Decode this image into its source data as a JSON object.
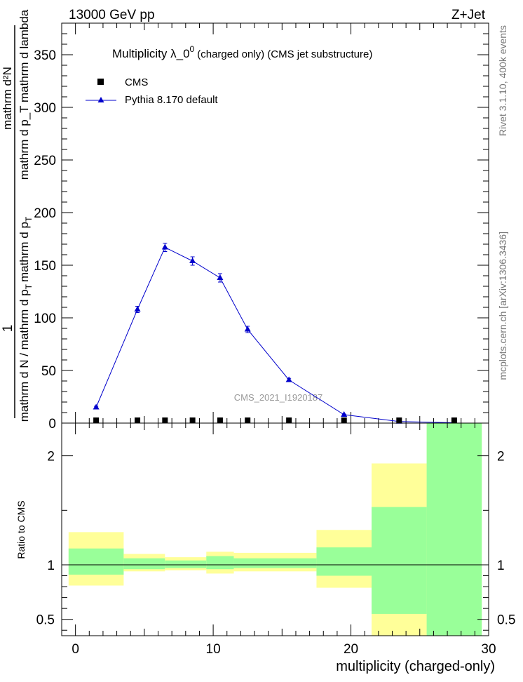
{
  "header": {
    "energy": "13000 GeV pp",
    "process": "Z+Jet"
  },
  "side_labels": {
    "rivet": "Rivet 3.1.10,  400k events",
    "mcplots": "mcplots.cern.ch [arXiv:1306.3436]"
  },
  "main_plot": {
    "title_main": "Multiplicity  λ_0",
    "title_sup": "0",
    "title_sub": "(charged only) (CMS jet substructure)",
    "watermark": "CMS_2021_I1920187",
    "ylabel_prefix": "1",
    "ylabel_denominator": "mathrm d N / mathrm d p_T mathrm d p_T",
    "ylabel_numerator": "mathrm d²N / mathrm d lambda",
    "ylabel_numerator_lines": [
      "mathrm d²N",
      "mathrm d p_T mathrm d lambda"
    ],
    "ylabel_denominator_lines": [
      "mathrm d N / mathrm d p",
      "T",
      "mathrm d p",
      "T"
    ]
  },
  "legend": {
    "entries": [
      {
        "label": "CMS",
        "color": "#000000",
        "marker": "square"
      },
      {
        "label": "Pythia 8.170 default",
        "color": "#0000cc",
        "marker": "triangle"
      }
    ]
  },
  "ratio_plot": {
    "ylabel": "Ratio to CMS",
    "xlabel": "multiplicity (charged-only)",
    "band_inner_color": "#99ff99",
    "band_outer_color": "#ffff99"
  },
  "chart_data": [
    {
      "type": "line",
      "title": "Multiplicity  λ_0^0 (charged only) (CMS jet substructure)",
      "xlim": [
        -1,
        30
      ],
      "ylim": [
        0,
        380
      ],
      "yticks": [
        0,
        50,
        100,
        150,
        200,
        250,
        300,
        350
      ],
      "series": [
        {
          "name": "Pythia 8.170 default",
          "color": "#0000cc",
          "x": [
            1.5,
            4.5,
            6.5,
            8.5,
            10.5,
            12.5,
            15.5,
            19.5,
            23.5,
            27.5
          ],
          "values": [
            15,
            108,
            167,
            154,
            138,
            89,
            41,
            8,
            1.5,
            0.3
          ],
          "errors": [
            1,
            3,
            4,
            4,
            4,
            3,
            1.5,
            0.5,
            0.2,
            0.1
          ]
        },
        {
          "name": "CMS",
          "color": "#000000",
          "x": [
            1.5,
            4.5,
            6.5,
            8.5,
            10.5,
            12.5,
            15.5,
            19.5,
            23.5,
            27.5
          ],
          "values": [
            0.8,
            0.8,
            1.0,
            1.0,
            0.8,
            0.6,
            0.5,
            0.4,
            0.3,
            0.4
          ]
        }
      ]
    },
    {
      "type": "area",
      "title": "Ratio to CMS",
      "xlabel": "multiplicity (charged-only)",
      "ylabel": "Ratio to CMS",
      "xlim": [
        -1,
        30
      ],
      "ylim": [
        0.35,
        2.3
      ],
      "xticks": [
        0,
        10,
        20,
        30
      ],
      "yticks": [
        0.5,
        1,
        2
      ],
      "reference_line": 1,
      "bins": [
        {
          "lo": -0.5,
          "hi": 3.5,
          "inner": [
            0.91,
            1.15
          ],
          "outer": [
            0.81,
            1.3
          ]
        },
        {
          "lo": 3.5,
          "hi": 6.5,
          "inner": [
            0.96,
            1.06
          ],
          "outer": [
            0.94,
            1.1
          ]
        },
        {
          "lo": 6.5,
          "hi": 9.5,
          "inner": [
            0.97,
            1.04
          ],
          "outer": [
            0.95,
            1.07
          ]
        },
        {
          "lo": 9.5,
          "hi": 11.5,
          "inner": [
            0.96,
            1.08
          ],
          "outer": [
            0.92,
            1.12
          ]
        },
        {
          "lo": 11.5,
          "hi": 17.5,
          "inner": [
            0.97,
            1.06
          ],
          "outer": [
            0.94,
            1.11
          ]
        },
        {
          "lo": 17.5,
          "hi": 21.5,
          "inner": [
            0.9,
            1.16
          ],
          "outer": [
            0.79,
            1.32
          ]
        },
        {
          "lo": 21.5,
          "hi": 25.5,
          "inner": [
            0.55,
            1.53
          ],
          "outer": [
            0.35,
            1.93
          ]
        },
        {
          "lo": 25.5,
          "hi": 29.5,
          "inner": [
            0.35,
            2.3
          ],
          "outer": [
            0.35,
            2.3
          ]
        }
      ]
    }
  ]
}
